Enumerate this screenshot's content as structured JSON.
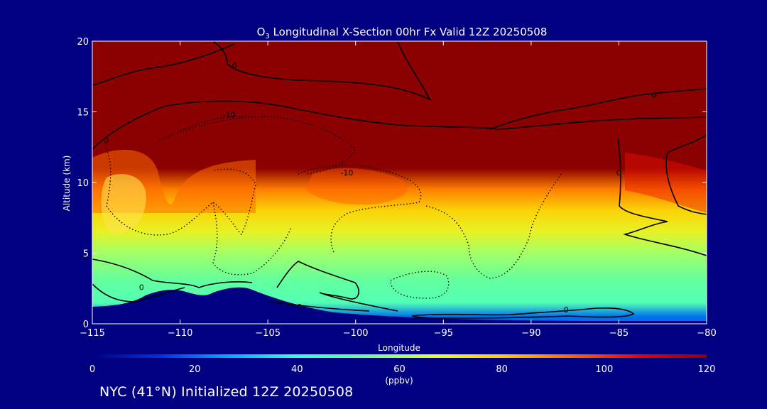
{
  "chart_data": {
    "type": "heatmap",
    "title": "O3 Longitudinal X-Section 00hr  Fx Valid 12Z 20250508",
    "title_parts": {
      "prefix": "O",
      "subscript": "3",
      "rest": " Longitudinal X-Section 00hr  Fx Valid 12Z 20250508"
    },
    "xlabel": "Longitude",
    "ylabel": "Altitude (km)",
    "xlim": [
      -115,
      -80
    ],
    "ylim": [
      0,
      20
    ],
    "x_ticks": [
      -115,
      -110,
      -105,
      -100,
      -95,
      -90,
      -85,
      -80
    ],
    "x_tick_labels": [
      "−115",
      "−110",
      "−105",
      "−100",
      "−95",
      "−90",
      "−85",
      "−80"
    ],
    "y_ticks": [
      0,
      5,
      10,
      15,
      20
    ],
    "y_tick_labels": [
      "0",
      "5",
      "10",
      "15",
      "20"
    ],
    "colorbar": {
      "min": 0,
      "max": 120,
      "ticks": [
        0,
        20,
        40,
        60,
        80,
        100,
        120
      ],
      "tick_labels": [
        "0",
        "20",
        "40",
        "60",
        "80",
        "100",
        "120"
      ],
      "unit": "(ppbv)"
    },
    "ozone_levels_ppbv": [
      {
        "altitude_km": 0.5,
        "value": 20
      },
      {
        "altitude_km": 1.5,
        "value": 48
      },
      {
        "altitude_km": 3.0,
        "value": 52
      },
      {
        "altitude_km": 5.0,
        "value": 60
      },
      {
        "altitude_km": 6.5,
        "value": 70
      },
      {
        "altitude_km": 8.0,
        "value": 78
      },
      {
        "altitude_km": 9.5,
        "value": 90
      },
      {
        "altitude_km": 11.0,
        "value": 120
      },
      {
        "altitude_km": 20.0,
        "value": 120
      }
    ],
    "contour_labels": [
      {
        "text": "0",
        "lon": -112.2,
        "alt": 2.6
      },
      {
        "text": "0",
        "lon": -103.2,
        "alt": 1.2
      },
      {
        "text": "0",
        "lon": -88.0,
        "alt": 1.0
      },
      {
        "text": "0",
        "lon": -83.0,
        "alt": 16.2
      },
      {
        "text": "0",
        "lon": -85.0,
        "alt": 10.7
      },
      {
        "text": "0",
        "lon": -114.2,
        "alt": 13.0
      },
      {
        "text": "0",
        "lon": -106.9,
        "alt": 18.3
      },
      {
        "text": "-10",
        "lon": -107.2,
        "alt": 14.8
      },
      {
        "text": "-10",
        "lon": -100.5,
        "alt": 10.7
      }
    ],
    "colors": {
      "background": "#000080",
      "colormap": [
        "#000080",
        "#0033dd",
        "#00aaff",
        "#33ffdd",
        "#66ff99",
        "#ddff33",
        "#ffcc00",
        "#ff6600",
        "#ee0000",
        "#8b0000"
      ]
    }
  },
  "footer": "NYC (41°N) Initialized 12Z 20250508"
}
